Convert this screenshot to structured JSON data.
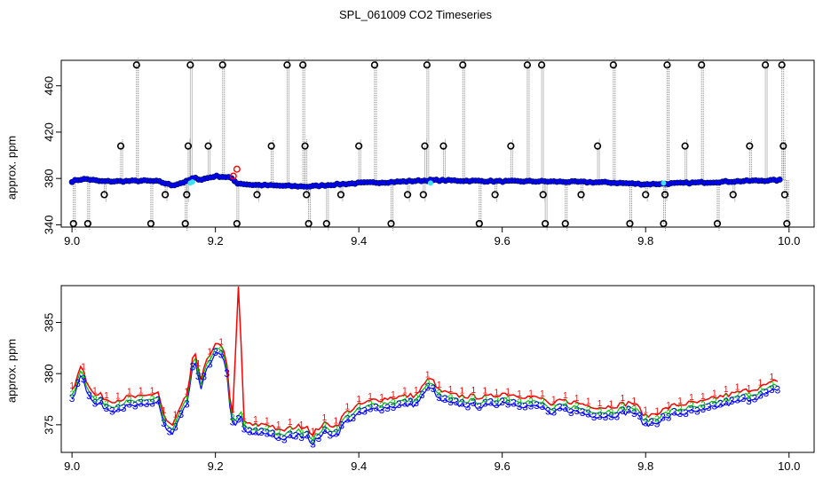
{
  "title": "SPL_061009  CO2 Timeseries",
  "colors": {
    "outline": "#000000",
    "flag_1": "#ff0000",
    "flag_2": "#00c000",
    "flag_3": "#0000ff",
    "highlight_cyan": "#40e0f0",
    "drop_line": "#808080",
    "background": "#ffffff"
  },
  "chart_data": [
    {
      "type": "scatter",
      "title": "",
      "xlabel": "",
      "ylabel": "approx. ppm",
      "xlim": [
        8.985,
        10.035
      ],
      "ylim": [
        338,
        482
      ],
      "x_ticks": [
        9.0,
        9.2,
        9.4,
        9.6,
        9.8,
        10.0
      ],
      "x_tick_labels": [
        "9.0",
        "9.2",
        "9.4",
        "9.6",
        "9.8",
        "10.0"
      ],
      "y_ticks": [
        340,
        380,
        420,
        460
      ],
      "y_tick_labels": [
        "340",
        "380",
        "420",
        "460"
      ],
      "grid": false,
      "series": [
        {
          "marker": "open-circle",
          "color": "#0000ff",
          "baseline": [
            [
              9.0,
              377.5
            ],
            [
              9.01,
              379
            ],
            [
              9.02,
              379.5
            ],
            [
              9.04,
              377.5
            ],
            [
              9.06,
              377.5
            ],
            [
              9.1,
              378
            ],
            [
              9.12,
              377.5
            ],
            [
              9.14,
              374
            ],
            [
              9.16,
              377.5
            ],
            [
              9.17,
              380.5
            ],
            [
              9.18,
              379
            ],
            [
              9.2,
              382
            ],
            [
              9.22,
              381
            ],
            [
              9.23,
              376
            ],
            [
              9.25,
              374.5
            ],
            [
              9.3,
              373.5
            ],
            [
              9.33,
              373
            ],
            [
              9.36,
              374.5
            ],
            [
              9.4,
              376
            ],
            [
              9.45,
              377
            ],
            [
              9.5,
              378.5
            ],
            [
              9.55,
              378
            ],
            [
              9.6,
              377.5
            ],
            [
              9.65,
              377.5
            ],
            [
              9.7,
              377
            ],
            [
              9.75,
              376.5
            ],
            [
              9.8,
              375
            ],
            [
              9.83,
              375.5
            ],
            [
              9.9,
              377
            ],
            [
              9.95,
              378
            ],
            [
              9.985,
              378.5
            ]
          ]
        },
        {
          "marker": "open-circle",
          "color": "#000000",
          "name": "",
          "points": [
            [
              9.002,
              341
            ],
            [
              9.022,
              341
            ],
            [
              9.045,
              366
            ],
            [
              9.068,
              408
            ],
            [
              9.09,
              478
            ],
            [
              9.11,
              341
            ],
            [
              9.13,
              366
            ],
            [
              9.158,
              341
            ],
            [
              9.16,
              366
            ],
            [
              9.162,
              408
            ],
            [
              9.165,
              478
            ],
            [
              9.19,
              408
            ],
            [
              9.21,
              478
            ],
            [
              9.23,
              341
            ],
            [
              9.258,
              366
            ],
            [
              9.278,
              408
            ],
            [
              9.3,
              478
            ],
            [
              9.322,
              478
            ],
            [
              9.325,
              408
            ],
            [
              9.327,
              366
            ],
            [
              9.33,
              341
            ],
            [
              9.355,
              341
            ],
            [
              9.375,
              366
            ],
            [
              9.4,
              408
            ],
            [
              9.422,
              478
            ],
            [
              9.445,
              341
            ],
            [
              9.468,
              366
            ],
            [
              9.49,
              366
            ],
            [
              9.492,
              408
            ],
            [
              9.495,
              478
            ],
            [
              9.518,
              408
            ],
            [
              9.545,
              478
            ],
            [
              9.568,
              341
            ],
            [
              9.59,
              366
            ],
            [
              9.612,
              408
            ],
            [
              9.635,
              478
            ],
            [
              9.655,
              478
            ],
            [
              9.657,
              366
            ],
            [
              9.66,
              341
            ],
            [
              9.688,
              341
            ],
            [
              9.71,
              366
            ],
            [
              9.733,
              408
            ],
            [
              9.755,
              478
            ],
            [
              9.778,
              341
            ],
            [
              9.8,
              366
            ],
            [
              9.825,
              341
            ],
            [
              9.827,
              366
            ],
            [
              9.83,
              478
            ],
            [
              9.855,
              408
            ],
            [
              9.878,
              478
            ],
            [
              9.9,
              341
            ],
            [
              9.922,
              366
            ],
            [
              9.945,
              408
            ],
            [
              9.967,
              478
            ],
            [
              9.99,
              478
            ],
            [
              9.992,
              408
            ],
            [
              9.994,
              366
            ],
            [
              9.997,
              341
            ]
          ]
        },
        {
          "marker": "open-circle",
          "color": "#ff0000",
          "points": [
            [
              9.23,
              388
            ],
            [
              9.225,
              382
            ]
          ]
        },
        {
          "marker": "filled-circle",
          "color": "#40e0f0",
          "points": [
            [
              9.165,
              376
            ],
            [
              9.168,
              377
            ],
            [
              9.5,
              376
            ],
            [
              9.825,
              376
            ]
          ]
        }
      ]
    },
    {
      "type": "line",
      "title": "",
      "xlabel": "",
      "ylabel": "approx. ppm",
      "xlim": [
        8.985,
        10.035
      ],
      "ylim": [
        372.3,
        388.6
      ],
      "x_ticks": [
        9.0,
        9.2,
        9.4,
        9.6,
        9.8,
        10.0
      ],
      "x_tick_labels": [
        "9.0",
        "9.2",
        "9.4",
        "9.6",
        "9.8",
        "10.0"
      ],
      "y_ticks": [
        375,
        380,
        385
      ],
      "y_tick_labels": [
        "375",
        "380",
        "385"
      ],
      "grid": false,
      "series": [
        {
          "name": "1",
          "color": "#ff0000",
          "marker_text": "1",
          "offset": 0.9,
          "spikes": [
            [
              9.232,
              388.5
            ]
          ]
        },
        {
          "name": "2",
          "color": "#00c000",
          "marker_text": "2",
          "offset": 0.45
        },
        {
          "name": "3",
          "color": "#0000ff",
          "marker_text": "3",
          "offset": 0,
          "values": [
            [
              9.0,
              377.5
            ],
            [
              9.005,
              378.3
            ],
            [
              9.01,
              379.7
            ],
            [
              9.015,
              379.8
            ],
            [
              9.02,
              378.5
            ],
            [
              9.03,
              377
            ],
            [
              9.04,
              377
            ],
            [
              9.05,
              376.5
            ],
            [
              9.06,
              376.5
            ],
            [
              9.08,
              376.8
            ],
            [
              9.1,
              376.8
            ],
            [
              9.12,
              377.3
            ],
            [
              9.13,
              374.5
            ],
            [
              9.14,
              374
            ],
            [
              9.15,
              375.5
            ],
            [
              9.16,
              377
            ],
            [
              9.165,
              379
            ],
            [
              9.17,
              381.3
            ],
            [
              9.175,
              380
            ],
            [
              9.18,
              378.7
            ],
            [
              9.185,
              380
            ],
            [
              9.19,
              380.5
            ],
            [
              9.2,
              381.8
            ],
            [
              9.21,
              382
            ],
            [
              9.215,
              380.5
            ],
            [
              9.22,
              377
            ],
            [
              9.225,
              374.5
            ],
            [
              9.23,
              375
            ],
            [
              9.235,
              376
            ],
            [
              9.24,
              374.5
            ],
            [
              9.25,
              374
            ],
            [
              9.27,
              374.2
            ],
            [
              9.28,
              374
            ],
            [
              9.29,
              373.4
            ],
            [
              9.3,
              373.7
            ],
            [
              9.31,
              373.9
            ],
            [
              9.33,
              374
            ],
            [
              9.335,
              372.8
            ],
            [
              9.34,
              373.5
            ],
            [
              9.35,
              374.2
            ],
            [
              9.37,
              374
            ],
            [
              9.38,
              375.2
            ],
            [
              9.4,
              376
            ],
            [
              9.42,
              376.5
            ],
            [
              9.45,
              376.8
            ],
            [
              9.48,
              377
            ],
            [
              9.5,
              378.8
            ],
            [
              9.51,
              377.5
            ],
            [
              9.53,
              377
            ],
            [
              9.55,
              376.9
            ],
            [
              9.58,
              376.8
            ],
            [
              9.6,
              377.2
            ],
            [
              9.63,
              376.9
            ],
            [
              9.66,
              376.6
            ],
            [
              9.668,
              375.8
            ],
            [
              9.68,
              376.5
            ],
            [
              9.7,
              376.3
            ],
            [
              9.72,
              376
            ],
            [
              9.74,
              375.8
            ],
            [
              9.76,
              376
            ],
            [
              9.78,
              376.3
            ],
            [
              9.79,
              375.8
            ],
            [
              9.8,
              374.9
            ],
            [
              9.82,
              375.4
            ],
            [
              9.84,
              376
            ],
            [
              9.86,
              376.2
            ],
            [
              9.88,
              376.3
            ],
            [
              9.9,
              376.8
            ],
            [
              9.92,
              377.1
            ],
            [
              9.95,
              377.6
            ],
            [
              9.97,
              378
            ],
            [
              9.985,
              378.5
            ]
          ]
        }
      ]
    }
  ]
}
